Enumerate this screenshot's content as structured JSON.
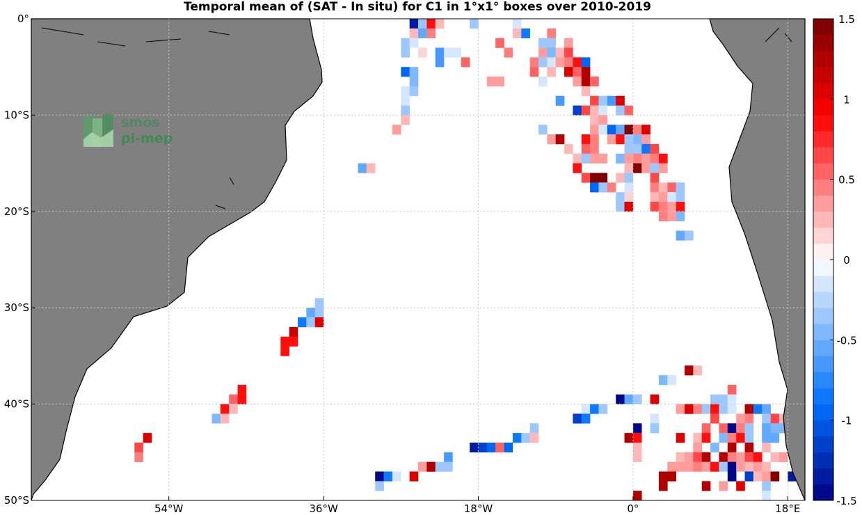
{
  "chart_data": {
    "type": "heatmap",
    "title": "Temporal mean of (SAT - In situ) for C1 in 1°x1° boxes over 2010-2019",
    "xlabel": "",
    "ylabel": "",
    "xlim": [
      -70,
      20
    ],
    "ylim": [
      -50,
      0
    ],
    "grid": true,
    "x_ticks": [
      {
        "value": -54,
        "label": "54°W"
      },
      {
        "value": -36,
        "label": "36°W"
      },
      {
        "value": -18,
        "label": "18°W"
      },
      {
        "value": 0,
        "label": "0°"
      },
      {
        "value": 18,
        "label": "18°E"
      }
    ],
    "y_ticks": [
      {
        "value": 0,
        "label": "0°"
      },
      {
        "value": -10,
        "label": "10°S"
      },
      {
        "value": -20,
        "label": "20°S"
      },
      {
        "value": -30,
        "label": "30°S"
      },
      {
        "value": -40,
        "label": "40°S"
      },
      {
        "value": -50,
        "label": "50°S"
      }
    ],
    "colorbar": {
      "range": [
        -1.5,
        1.5
      ],
      "ticks": [
        {
          "value": 1.5,
          "label": "1.5"
        },
        {
          "value": 1,
          "label": "1"
        },
        {
          "value": 0.5,
          "label": "0.5"
        },
        {
          "value": 0,
          "label": "0"
        },
        {
          "value": -0.5,
          "label": "-0.5"
        },
        {
          "value": -1,
          "label": "-1"
        },
        {
          "value": -1.5,
          "label": "-1.5"
        }
      ]
    },
    "cells": [
      [
        -25.5,
        -0.5,
        -1.3
      ],
      [
        -24.5,
        -0.5,
        -0.3
      ],
      [
        -23.5,
        -0.5,
        0.8
      ],
      [
        -22.5,
        -0.5,
        0.2
      ],
      [
        -18.5,
        -0.5,
        -0.3
      ],
      [
        -13.5,
        -0.5,
        -0.2
      ],
      [
        -25.5,
        -1.5,
        0.2
      ],
      [
        -24.5,
        -1.5,
        -0.6
      ],
      [
        -23.5,
        -1.5,
        0.4
      ],
      [
        -13.5,
        -1.5,
        0.2
      ],
      [
        -12.5,
        -1.5,
        -0.8
      ],
      [
        -9.5,
        -1.5,
        0.4
      ],
      [
        -26.5,
        -2.5,
        -0.4
      ],
      [
        -25.5,
        -2.5,
        -0.2
      ],
      [
        -15.5,
        -2.5,
        0.5
      ],
      [
        -10.5,
        -2.5,
        -0.3
      ],
      [
        -9.5,
        -2.5,
        -0.4
      ],
      [
        -7.5,
        -2.5,
        0.3
      ],
      [
        -26.5,
        -3.5,
        -0.4
      ],
      [
        -24.5,
        -3.5,
        0.1
      ],
      [
        -22.5,
        -3.5,
        -0.7
      ],
      [
        -21.5,
        -3.5,
        -0.2
      ],
      [
        -20.5,
        -3.5,
        -0.2
      ],
      [
        -14.5,
        -3.5,
        0.4
      ],
      [
        -10.5,
        -3.5,
        0.3
      ],
      [
        -9.5,
        -3.5,
        -0.5
      ],
      [
        -8.5,
        -3.5,
        0.2
      ],
      [
        -7.5,
        -3.5,
        0.6
      ],
      [
        -22.5,
        -4.5,
        -0.7
      ],
      [
        -19.5,
        -4.5,
        0.5
      ],
      [
        -11.5,
        -4.5,
        0.4
      ],
      [
        -10.5,
        -4.5,
        -0.3
      ],
      [
        -9.5,
        -4.5,
        -0.2
      ],
      [
        -8.5,
        -4.5,
        0.3
      ],
      [
        -7.5,
        -4.5,
        0.4
      ],
      [
        -6.5,
        -4.5,
        0.8
      ],
      [
        -5.5,
        -4.5,
        -1.0
      ],
      [
        -26.5,
        -5.5,
        -0.9
      ],
      [
        -25.5,
        -5.5,
        -0.5
      ],
      [
        -11.5,
        -5.5,
        0.5
      ],
      [
        -9.5,
        -5.5,
        0.2
      ],
      [
        -7.5,
        -5.5,
        1.0
      ],
      [
        -6.5,
        -5.5,
        0.5
      ],
      [
        -5.5,
        -5.5,
        1.3
      ],
      [
        -25.5,
        -6.5,
        -0.5
      ],
      [
        -16.5,
        -6.5,
        0.3
      ],
      [
        -15.5,
        -6.5,
        0.3
      ],
      [
        -10.5,
        -6.5,
        -0.2
      ],
      [
        -6.5,
        -6.5,
        0.3
      ],
      [
        -5.5,
        -6.5,
        1.2
      ],
      [
        -4.5,
        -6.5,
        0.5
      ],
      [
        -26.5,
        -7.5,
        -0.2
      ],
      [
        -25.5,
        -7.5,
        -0.4
      ],
      [
        -5.5,
        -7.5,
        0.2
      ],
      [
        -26.5,
        -8.5,
        -0.2
      ],
      [
        -8.5,
        -8.5,
        -0.7
      ],
      [
        -4.5,
        -8.5,
        0.6
      ],
      [
        -3.5,
        -8.5,
        -0.3
      ],
      [
        -2.5,
        -8.5,
        -0.7
      ],
      [
        -1.5,
        -8.5,
        1.0
      ],
      [
        -26.5,
        -9.5,
        -0.4
      ],
      [
        -6.5,
        -9.5,
        -1.2
      ],
      [
        -5.5,
        -9.5,
        0.6
      ],
      [
        -4.5,
        -9.5,
        0.2
      ],
      [
        -3.5,
        -9.5,
        -0.2
      ],
      [
        -1.5,
        -9.5,
        -0.3
      ],
      [
        -0.5,
        -9.5,
        0.5
      ],
      [
        -26.5,
        -10.5,
        0.2
      ],
      [
        -4.5,
        -10.5,
        0.2
      ],
      [
        -3.5,
        -10.5,
        0.3
      ],
      [
        -27.5,
        -11.5,
        0.3
      ],
      [
        -10.5,
        -11.5,
        -0.4
      ],
      [
        -4.5,
        -11.5,
        0.3
      ],
      [
        -3.5,
        -11.5,
        -0.2
      ],
      [
        -2.5,
        -11.5,
        -0.9
      ],
      [
        -1.5,
        -11.5,
        -0.6
      ],
      [
        -0.5,
        -11.5,
        1.5
      ],
      [
        0.5,
        -11.5,
        0.4
      ],
      [
        1.5,
        -11.5,
        1.0
      ],
      [
        -9.5,
        -12.5,
        0.3
      ],
      [
        -8.5,
        -12.5,
        1.3
      ],
      [
        -5.5,
        -12.5,
        0.8
      ],
      [
        -4.5,
        -12.5,
        0.4
      ],
      [
        -2.5,
        -12.5,
        0.3
      ],
      [
        -1.5,
        -12.5,
        0.8
      ],
      [
        -0.5,
        -12.5,
        -0.3
      ],
      [
        0.5,
        -12.5,
        -0.5
      ],
      [
        1.5,
        -12.5,
        0.3
      ],
      [
        -7.5,
        -13.5,
        0.2
      ],
      [
        -5.5,
        -13.5,
        0.5
      ],
      [
        -4.5,
        -13.5,
        0.4
      ],
      [
        -0.5,
        -13.5,
        -0.3
      ],
      [
        0.5,
        -13.5,
        -0.4
      ],
      [
        1.5,
        -13.5,
        -0.8
      ],
      [
        2.5,
        -13.5,
        0.6
      ],
      [
        -6.5,
        -14.5,
        0.2
      ],
      [
        -5.5,
        -14.5,
        -0.3
      ],
      [
        -4.5,
        -14.5,
        0.3
      ],
      [
        -3.5,
        -14.5,
        0.3
      ],
      [
        -1.5,
        -14.5,
        -0.5
      ],
      [
        -0.5,
        -14.5,
        0.3
      ],
      [
        0.5,
        -14.5,
        0.4
      ],
      [
        1.5,
        -14.5,
        0.3
      ],
      [
        2.5,
        -14.5,
        0.4
      ],
      [
        3.5,
        -14.5,
        0.8
      ],
      [
        -31.5,
        -15.5,
        -0.6
      ],
      [
        -30.5,
        -15.5,
        0.2
      ],
      [
        -6.5,
        -15.5,
        0.8
      ],
      [
        -0.5,
        -15.5,
        0.2
      ],
      [
        0.5,
        -15.5,
        1.4
      ],
      [
        1.5,
        -15.5,
        0.3
      ],
      [
        2.5,
        -15.5,
        -0.3
      ],
      [
        3.5,
        -15.5,
        0.3
      ],
      [
        -5.5,
        -16.5,
        0.6
      ],
      [
        -4.5,
        -16.5,
        1.5
      ],
      [
        -3.5,
        -16.5,
        1.5
      ],
      [
        -1.5,
        -16.5,
        0.2
      ],
      [
        -0.5,
        -16.5,
        -0.3
      ],
      [
        2.5,
        -16.5,
        0.6
      ],
      [
        -4.5,
        -17.5,
        -0.9
      ],
      [
        -3.5,
        -17.5,
        -0.3
      ],
      [
        -2.5,
        -17.5,
        0.4
      ],
      [
        -0.5,
        -17.5,
        -0.2
      ],
      [
        2.5,
        -17.5,
        0.4
      ],
      [
        3.5,
        -17.5,
        0.2
      ],
      [
        4.5,
        -17.5,
        0.5
      ],
      [
        5.5,
        -17.5,
        -0.3
      ],
      [
        -1.5,
        -18.5,
        -0.4
      ],
      [
        -0.5,
        -18.5,
        0.1
      ],
      [
        2.5,
        -18.5,
        0.2
      ],
      [
        3.5,
        -18.5,
        0.3
      ],
      [
        4.5,
        -18.5,
        -0.2
      ],
      [
        5.5,
        -18.5,
        -0.3
      ],
      [
        -1.5,
        -19.5,
        -0.4
      ],
      [
        -0.5,
        -19.5,
        1.0
      ],
      [
        2.5,
        -19.5,
        0.6
      ],
      [
        3.5,
        -19.5,
        0.4
      ],
      [
        4.5,
        -19.5,
        0.3
      ],
      [
        5.5,
        -19.5,
        0.8
      ],
      [
        3.5,
        -20.5,
        0.4
      ],
      [
        4.5,
        -20.5,
        0.3
      ],
      [
        5.5,
        -20.5,
        -0.5
      ],
      [
        5.5,
        -22.5,
        -0.6
      ],
      [
        6.5,
        -22.5,
        -0.3
      ],
      [
        -36.5,
        -29.5,
        -0.3
      ],
      [
        -37.5,
        -30.5,
        -0.6
      ],
      [
        -36.5,
        -30.5,
        -0.4
      ],
      [
        -38.5,
        -31.5,
        -0.8
      ],
      [
        -37.5,
        -31.5,
        -0.3
      ],
      [
        -36.5,
        -31.5,
        1.0
      ],
      [
        -39.5,
        -32.5,
        1.1
      ],
      [
        -40.5,
        -33.5,
        0.9
      ],
      [
        -39.5,
        -33.5,
        0.8
      ],
      [
        -40.5,
        -34.5,
        0.9
      ],
      [
        6.5,
        -36.5,
        1.2
      ],
      [
        7.5,
        -36.5,
        0.2
      ],
      [
        3.5,
        -37.5,
        -0.5
      ],
      [
        4.5,
        -37.5,
        -0.2
      ],
      [
        -45.5,
        -38.5,
        0.9
      ],
      [
        11.5,
        -38.5,
        0.5
      ],
      [
        -46.5,
        -39.5,
        0.5
      ],
      [
        -45.5,
        -39.5,
        0.9
      ],
      [
        -1.5,
        -39.5,
        -1.5
      ],
      [
        -0.5,
        -39.5,
        -0.6
      ],
      [
        0.5,
        -39.5,
        -0.4
      ],
      [
        2.5,
        -39.5,
        1.0
      ],
      [
        9.5,
        -39.5,
        -0.3
      ],
      [
        10.5,
        -39.5,
        -0.4
      ],
      [
        11.5,
        -39.5,
        -0.2
      ],
      [
        -47.5,
        -40.5,
        0.9
      ],
      [
        -46.5,
        -40.5,
        0.2
      ],
      [
        -5.5,
        -40.5,
        -0.2
      ],
      [
        -4.5,
        -40.5,
        -0.8
      ],
      [
        -3.5,
        -40.5,
        -0.4
      ],
      [
        5.5,
        -40.5,
        0.3
      ],
      [
        6.5,
        -40.5,
        1.0
      ],
      [
        7.5,
        -40.5,
        0.4
      ],
      [
        8.5,
        -40.5,
        -0.3
      ],
      [
        9.5,
        -40.5,
        0.9
      ],
      [
        10.5,
        -40.5,
        -0.3
      ],
      [
        11.5,
        -40.5,
        -0.2
      ],
      [
        13.5,
        -40.5,
        1.3
      ],
      [
        14.5,
        -40.5,
        -0.8
      ],
      [
        15.5,
        -40.5,
        -0.6
      ],
      [
        -48.5,
        -41.5,
        -0.5
      ],
      [
        -47.5,
        -41.5,
        0.2
      ],
      [
        -6.5,
        -41.5,
        -1.2
      ],
      [
        -5.5,
        -41.5,
        -0.8
      ],
      [
        2.5,
        -41.5,
        -0.2
      ],
      [
        9.5,
        -41.5,
        0.6
      ],
      [
        12.5,
        -41.5,
        0.3
      ],
      [
        13.5,
        -41.5,
        0.4
      ],
      [
        15.5,
        -41.5,
        -0.4
      ],
      [
        16.5,
        -41.5,
        0.6
      ],
      [
        17.5,
        -41.5,
        0.2
      ],
      [
        -11.5,
        -42.5,
        -0.3
      ],
      [
        0.5,
        -42.5,
        -1.5
      ],
      [
        2.5,
        -42.5,
        -0.4
      ],
      [
        8.5,
        -42.5,
        0.5
      ],
      [
        10.5,
        -42.5,
        0.5
      ],
      [
        11.5,
        -42.5,
        -1.5
      ],
      [
        12.5,
        -42.5,
        0.4
      ],
      [
        13.5,
        -42.5,
        -0.3
      ],
      [
        15.5,
        -42.5,
        -0.6
      ],
      [
        16.5,
        -42.5,
        -0.5
      ],
      [
        17.5,
        -42.5,
        -0.5
      ],
      [
        18.5,
        -42.5,
        0.3
      ],
      [
        -56.5,
        -43.5,
        1.0
      ],
      [
        -13.5,
        -43.5,
        -0.8
      ],
      [
        -12.5,
        -43.5,
        -0.3
      ],
      [
        -11.5,
        -43.5,
        0.2
      ],
      [
        -0.5,
        -43.5,
        1.3
      ],
      [
        0.5,
        -43.5,
        0.8
      ],
      [
        5.5,
        -43.5,
        1.0
      ],
      [
        7.5,
        -43.5,
        0.2
      ],
      [
        8.5,
        -43.5,
        0.9
      ],
      [
        10.5,
        -43.5,
        -0.5
      ],
      [
        11.5,
        -43.5,
        0.4
      ],
      [
        12.5,
        -43.5,
        0.8
      ],
      [
        13.5,
        -43.5,
        -0.4
      ],
      [
        15.5,
        -43.5,
        -0.6
      ],
      [
        16.5,
        -43.5,
        -0.6
      ],
      [
        18.5,
        -43.5,
        0.8
      ],
      [
        -57.5,
        -44.5,
        0.6
      ],
      [
        -18.5,
        -44.5,
        -1.4
      ],
      [
        -17.5,
        -44.5,
        -1.1
      ],
      [
        -16.5,
        -44.5,
        -0.9
      ],
      [
        -15.5,
        -44.5,
        0.5
      ],
      [
        -14.5,
        -44.5,
        -0.9
      ],
      [
        0.5,
        -44.5,
        0.2
      ],
      [
        7.5,
        -44.5,
        0.3
      ],
      [
        9.5,
        -44.5,
        -0.5
      ],
      [
        11.5,
        -44.5,
        1.3
      ],
      [
        13.5,
        -44.5,
        1.2
      ],
      [
        15.5,
        -44.5,
        0.2
      ],
      [
        18.5,
        -44.5,
        1.2
      ],
      [
        -57.5,
        -45.5,
        0.4
      ],
      [
        -21.5,
        -45.5,
        -0.7
      ],
      [
        0.5,
        -45.5,
        0.2
      ],
      [
        5.5,
        -45.5,
        0.2
      ],
      [
        6.5,
        -45.5,
        0.3
      ],
      [
        7.5,
        -45.5,
        0.6
      ],
      [
        8.5,
        -45.5,
        1.3
      ],
      [
        10.5,
        -45.5,
        1.2
      ],
      [
        11.5,
        -45.5,
        0.4
      ],
      [
        12.5,
        -45.5,
        0.3
      ],
      [
        13.5,
        -45.5,
        0.6
      ],
      [
        14.5,
        -45.5,
        0.8
      ],
      [
        16.5,
        -45.5,
        0.2
      ],
      [
        17.5,
        -45.5,
        0.3
      ],
      [
        -24.5,
        -46.5,
        0.3
      ],
      [
        -23.5,
        -46.5,
        1.2
      ],
      [
        -22.5,
        -46.5,
        -0.4
      ],
      [
        -21.5,
        -46.5,
        -0.3
      ],
      [
        4.5,
        -46.5,
        0.3
      ],
      [
        5.5,
        -46.5,
        0.3
      ],
      [
        6.5,
        -46.5,
        0.3
      ],
      [
        7.5,
        -46.5,
        0.4
      ],
      [
        8.5,
        -46.5,
        0.3
      ],
      [
        9.5,
        -46.5,
        0.8
      ],
      [
        10.5,
        -46.5,
        -0.3
      ],
      [
        11.5,
        -46.5,
        -1.5
      ],
      [
        12.5,
        -46.5,
        0.3
      ],
      [
        13.5,
        -46.5,
        0.2
      ],
      [
        14.5,
        -46.5,
        0.3
      ],
      [
        15.5,
        -46.5,
        0.2
      ],
      [
        -29.5,
        -47.5,
        -1.5
      ],
      [
        -28.5,
        -47.5,
        -0.8
      ],
      [
        -27.5,
        -47.5,
        -0.2
      ],
      [
        -25.5,
        -47.5,
        1.0
      ],
      [
        3.5,
        -47.5,
        1.3
      ],
      [
        4.5,
        -47.5,
        1.3
      ],
      [
        11.5,
        -47.5,
        -1.5
      ],
      [
        13.5,
        -47.5,
        -1.2
      ],
      [
        14.5,
        -47.5,
        0.2
      ],
      [
        15.5,
        -47.5,
        0.3
      ],
      [
        16.5,
        -47.5,
        1.4
      ],
      [
        18.5,
        -47.5,
        -1.3
      ],
      [
        -29.5,
        -48.5,
        -0.3
      ],
      [
        3.5,
        -48.5,
        1.3
      ],
      [
        8.5,
        -48.5,
        1.3
      ],
      [
        10.5,
        -48.5,
        0.3
      ],
      [
        12.5,
        -48.5,
        1.0
      ],
      [
        15.5,
        -48.5,
        -0.3
      ],
      [
        0.5,
        -49.5,
        1.3
      ],
      [
        15.5,
        -49.5,
        -0.2
      ]
    ]
  },
  "logo": {
    "line1": "smos",
    "line2": "pi-mep"
  },
  "colors": {
    "land": "#808080",
    "coast": "#000000",
    "grid": "#c8c8c8"
  }
}
